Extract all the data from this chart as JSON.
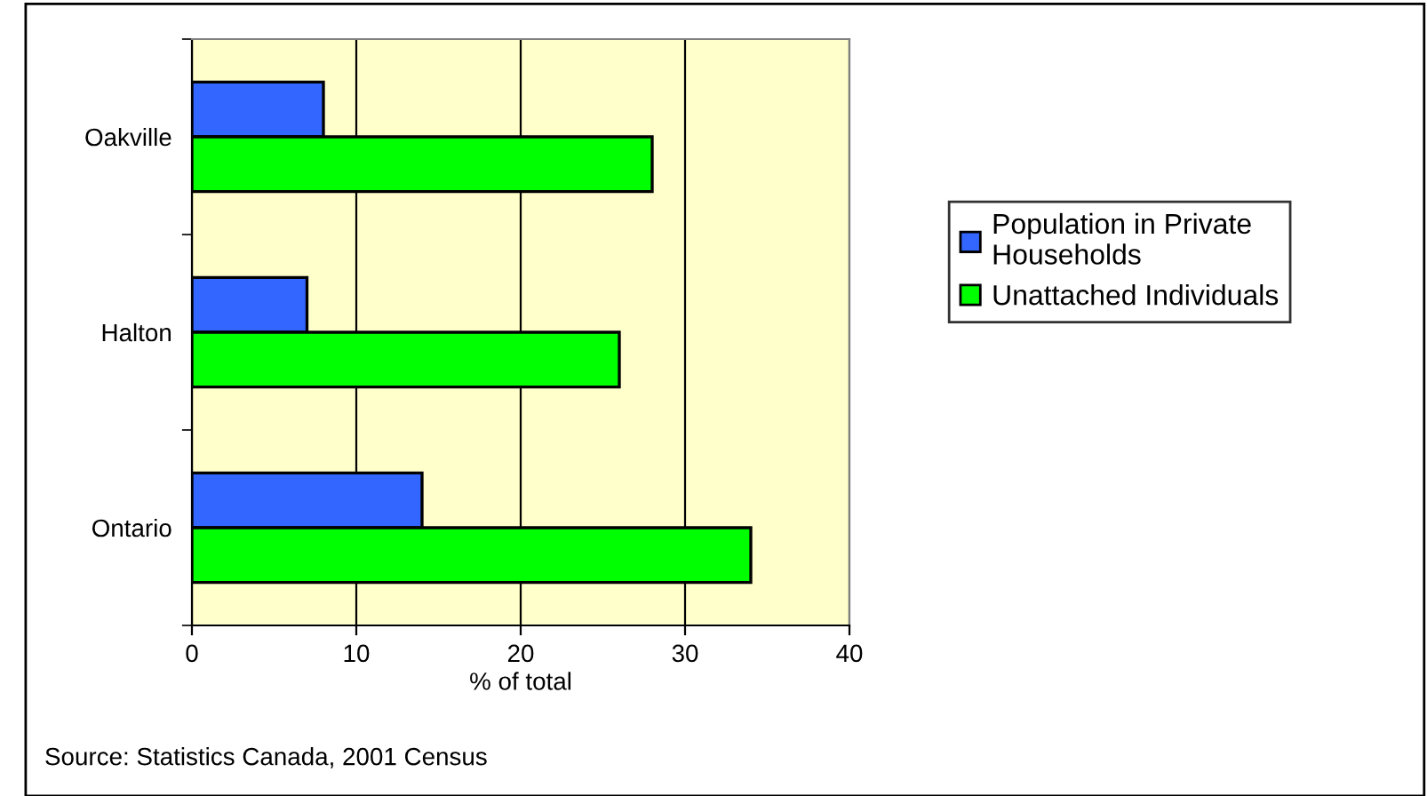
{
  "chart_data": {
    "type": "bar",
    "orientation": "horizontal",
    "categories": [
      "Oakville",
      "Halton",
      "Ontario"
    ],
    "series": [
      {
        "name": "Population in Private\nHouseholds",
        "color": "#3366ff",
        "values": [
          8,
          7,
          14
        ]
      },
      {
        "name": "Unattached Individuals",
        "color": "#00ff00",
        "values": [
          28,
          26,
          34
        ]
      }
    ],
    "xlabel": "% of total",
    "xlim": [
      0,
      40
    ],
    "xticks": [
      0,
      10,
      20,
      30,
      40
    ],
    "grid": "x",
    "legend": "right",
    "annotations": [
      "Source: Statistics Canada, 2001 Census"
    ]
  }
}
